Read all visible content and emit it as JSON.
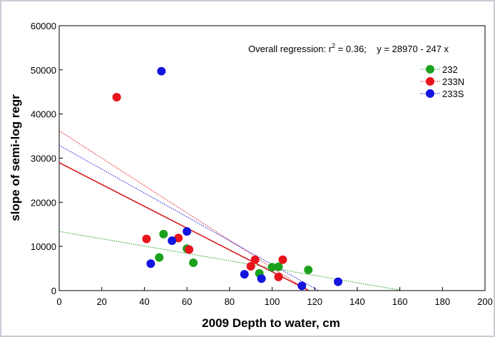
{
  "chart_data": {
    "type": "scatter",
    "title": "",
    "xlabel": "2009 Depth to water, cm",
    "ylabel": "slope of semi-log regr",
    "xlim": [
      0,
      200
    ],
    "ylim": [
      0,
      60000
    ],
    "xticks": [
      "0",
      "20",
      "40",
      "60",
      "80",
      "100",
      "120",
      "140",
      "160",
      "180",
      "200"
    ],
    "yticks": [
      "0",
      "10000",
      "20000",
      "30000",
      "40000",
      "50000",
      "60000"
    ],
    "annotation": {
      "prefix": "Overall regression: r",
      "sup": "2",
      "suffix": " = 0.36;    y = 28970 - 247 x"
    },
    "legend_position": "top-right",
    "series": [
      {
        "name": "232",
        "color": "#1ca11c",
        "points": [
          [
            47,
            7500
          ],
          [
            49,
            12800
          ],
          [
            60,
            9500
          ],
          [
            63,
            6300
          ],
          [
            94,
            3900
          ],
          [
            100,
            5300
          ],
          [
            103,
            5400
          ],
          [
            117,
            4700
          ]
        ],
        "fit": {
          "intercept": 13400,
          "slope": -83,
          "style": "dotted"
        }
      },
      {
        "name": "233N",
        "color": "#e8141c",
        "points": [
          [
            27,
            43800
          ],
          [
            41,
            11700
          ],
          [
            56,
            11900
          ],
          [
            61,
            9300
          ],
          [
            90,
            5500
          ],
          [
            92,
            7000
          ],
          [
            103,
            3100
          ],
          [
            105,
            7000
          ]
        ],
        "fit": {
          "intercept": 36200,
          "slope": -310,
          "style": "dotted"
        }
      },
      {
        "name": "233S",
        "color": "#1414e0",
        "points": [
          [
            43,
            6100
          ],
          [
            48,
            49700
          ],
          [
            53,
            11300
          ],
          [
            60,
            13400
          ],
          [
            87,
            3700
          ],
          [
            95,
            2700
          ],
          [
            114,
            1100
          ],
          [
            131,
            2000
          ]
        ],
        "fit": {
          "intercept": 32900,
          "slope": -270,
          "style": "dotted"
        }
      }
    ],
    "overall_fit": {
      "intercept": 28970,
      "slope": -247,
      "color": "#d41a1a"
    }
  }
}
